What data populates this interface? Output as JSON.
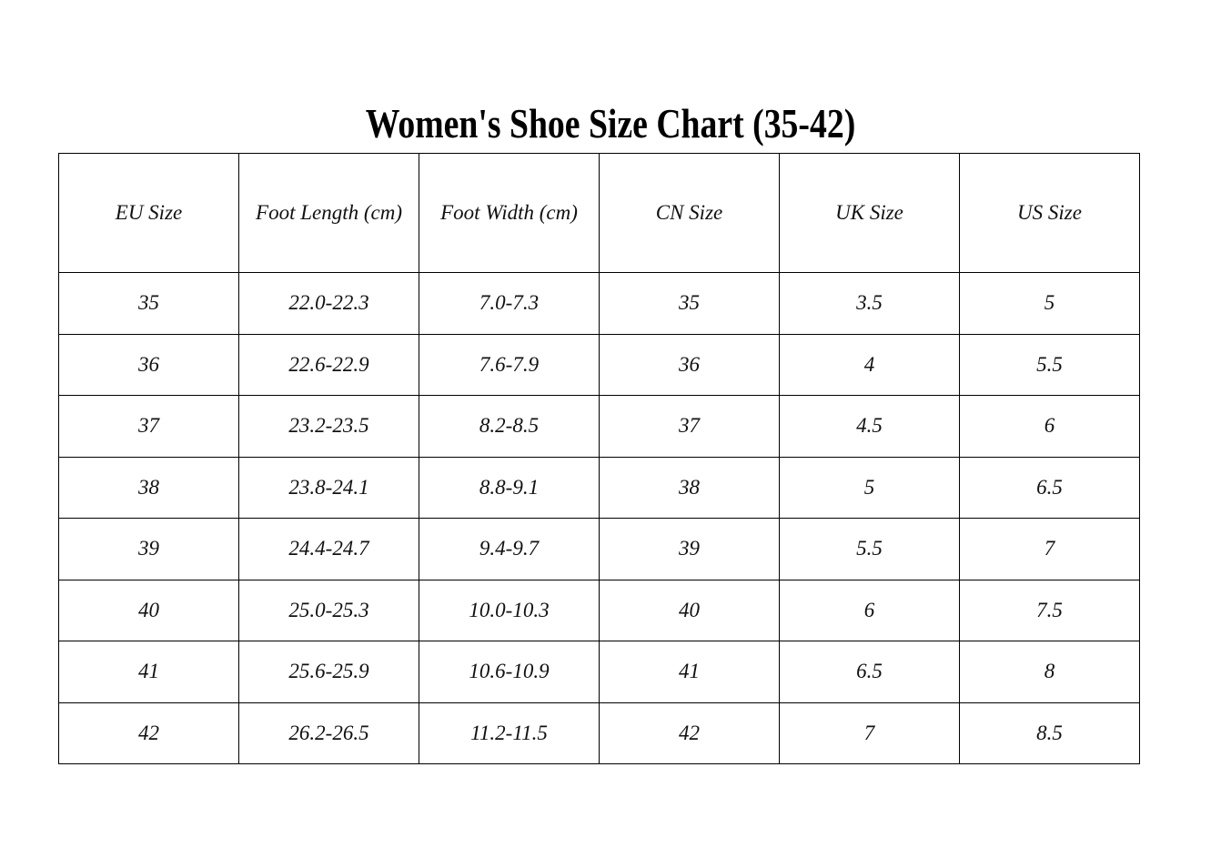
{
  "header": {
    "title": "Women's Shoe Size Chart (35-42)"
  },
  "table": {
    "columns": [
      "EU Size",
      "Foot Length (cm)",
      "Foot Width (cm)",
      "CN Size",
      "UK Size",
      "US Size"
    ],
    "rows": [
      [
        "35",
        "22.0-22.3",
        "7.0-7.3",
        "35",
        "3.5",
        "5"
      ],
      [
        "36",
        "22.6-22.9",
        "7.6-7.9",
        "36",
        "4",
        "5.5"
      ],
      [
        "37",
        "23.2-23.5",
        "8.2-8.5",
        "37",
        "4.5",
        "6"
      ],
      [
        "38",
        "23.8-24.1",
        "8.8-9.1",
        "38",
        "5",
        "6.5"
      ],
      [
        "39",
        "24.4-24.7",
        "9.4-9.7",
        "39",
        "5.5",
        "7"
      ],
      [
        "40",
        "25.0-25.3",
        "10.0-10.3",
        "40",
        "6",
        "7.5"
      ],
      [
        "41",
        "25.6-25.9",
        "10.6-10.9",
        "41",
        "6.5",
        "8"
      ],
      [
        "42",
        "26.2-26.5",
        "11.2-11.5",
        "42",
        "7",
        "8.5"
      ]
    ]
  }
}
